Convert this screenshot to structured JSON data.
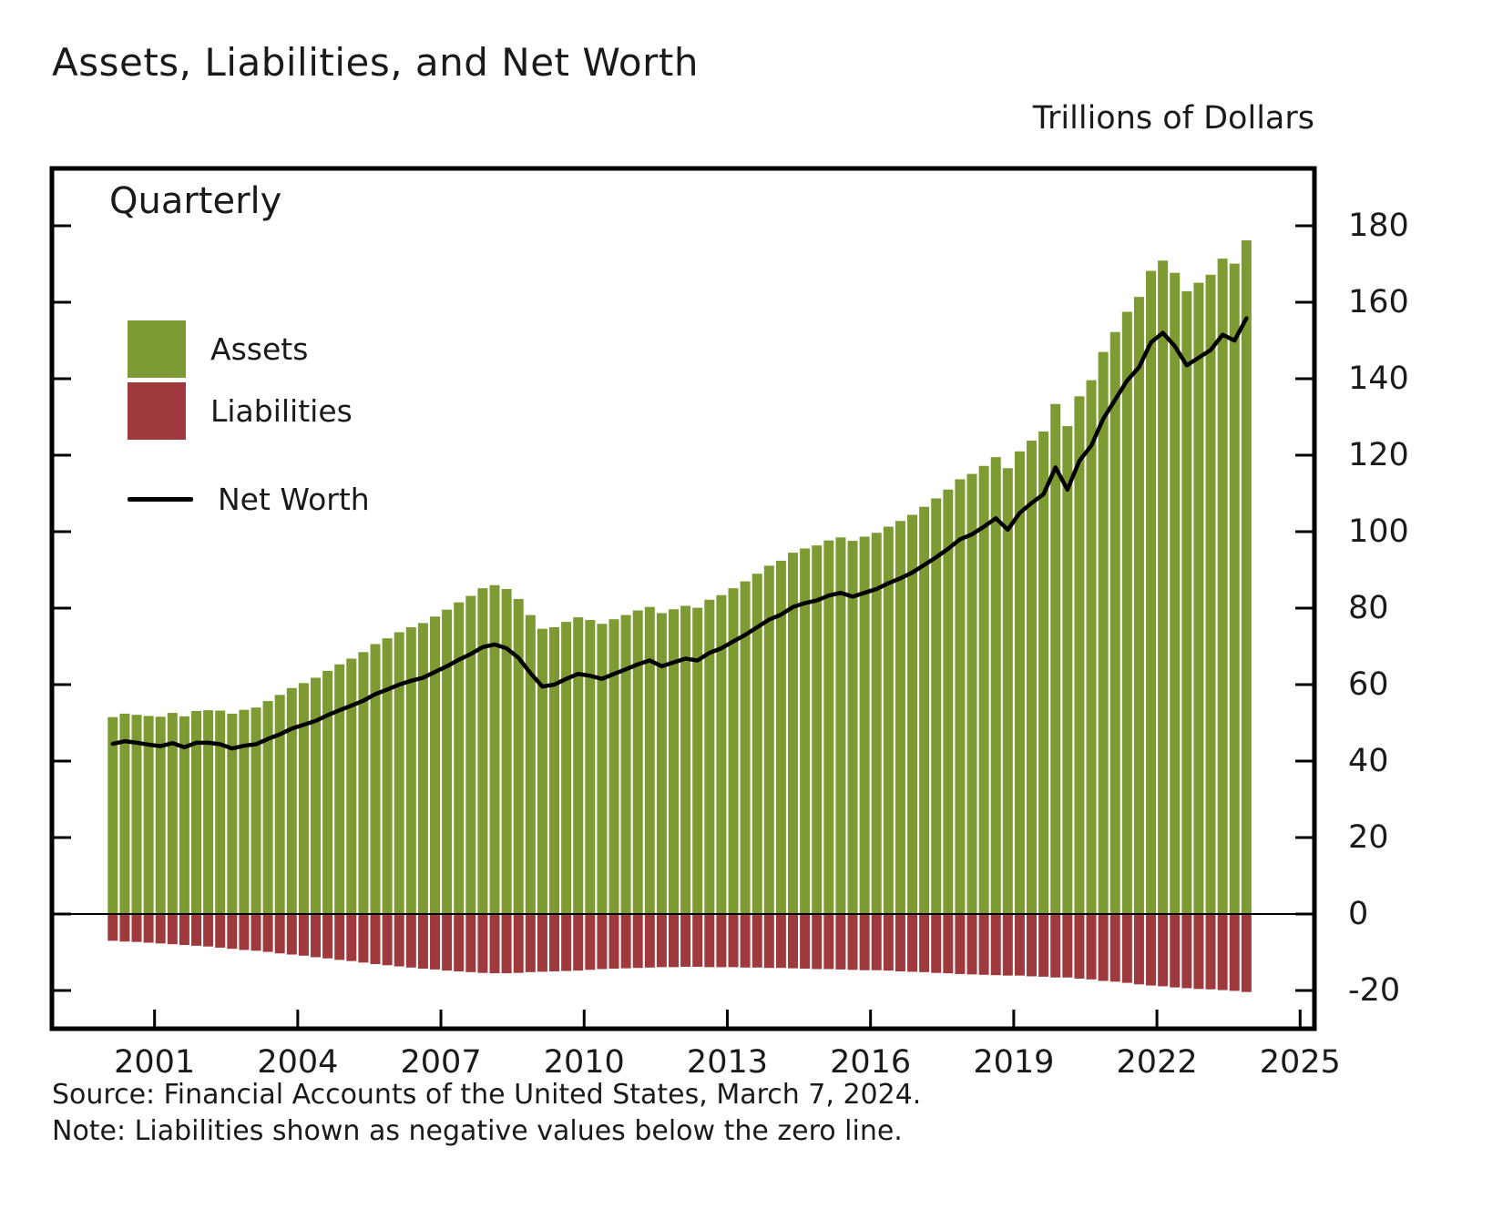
{
  "header": {
    "title": "Assets, Liabilities, and Net Worth",
    "units_label": "Trillions of Dollars"
  },
  "plot": {
    "frequency_label": "Quarterly"
  },
  "legend": {
    "assets": "Assets",
    "liabilities": "Liabilities",
    "net_worth": "Net Worth"
  },
  "footer": {
    "source": "Source: Financial Accounts of the United States, March 7, 2024.",
    "note": "Note: Liabilities shown as negative values below the zero line."
  },
  "colors": {
    "assets": "#7d9b32",
    "liabilities": "#9e3a3d",
    "net_worth": "#000000",
    "frame": "#000000",
    "text": "#1a1a1a"
  },
  "chart_data": {
    "type": "bar",
    "subtype": "quarterly bars with line overlay",
    "title": "Assets, Liabilities, and Net Worth",
    "ylabel": "Trillions of Dollars",
    "xlabel": "",
    "frequency": "quarterly",
    "start_year": 2000,
    "grid": false,
    "legend_position": "upper-left-inside",
    "x_ticks": [
      2001,
      2004,
      2007,
      2010,
      2013,
      2016,
      2019,
      2022,
      2025
    ],
    "y_ticks": [
      180,
      160,
      140,
      120,
      100,
      80,
      60,
      40,
      20,
      0,
      -20
    ],
    "ylim": [
      -30,
      195
    ],
    "xlim": [
      1998.85,
      2025.3
    ],
    "series": [
      {
        "name": "Assets",
        "type": "bar",
        "color": "#7d9b32",
        "values": [
          51.5,
          52.4,
          52.1,
          51.8,
          51.6,
          52.6,
          51.7,
          53.1,
          53.3,
          53.2,
          52.4,
          53.4,
          54.0,
          55.7,
          57.3,
          59.1,
          60.4,
          61.8,
          63.6,
          65.3,
          66.8,
          68.5,
          70.6,
          72.1,
          73.7,
          75.0,
          76.1,
          77.8,
          79.6,
          81.5,
          83.2,
          85.2,
          86.0,
          85.0,
          82.4,
          78.2,
          74.6,
          75.0,
          76.4,
          77.6,
          76.9,
          75.9,
          77.1,
          78.2,
          79.4,
          80.3,
          78.7,
          79.7,
          80.6,
          80.1,
          82.2,
          83.4,
          85.2,
          87.0,
          89.0,
          91.1,
          92.4,
          94.5,
          95.6,
          96.4,
          97.7,
          98.5,
          97.6,
          98.7,
          99.7,
          101.3,
          102.8,
          104.4,
          106.5,
          108.7,
          111.0,
          113.7,
          115.1,
          117.2,
          119.5,
          116.6,
          121.0,
          123.8,
          126.2,
          133.4,
          127.6,
          135.4,
          139.6,
          147.0,
          152.2,
          157.5,
          161.4,
          168.2,
          170.9,
          167.7,
          162.9,
          165.1,
          167.2,
          171.4,
          170.1,
          176.2
        ]
      },
      {
        "name": "Liabilities",
        "type": "bar",
        "color": "#9e3a3d",
        "values": [
          -7.0,
          -7.2,
          -7.3,
          -7.5,
          -7.7,
          -7.9,
          -8.1,
          -8.3,
          -8.5,
          -8.8,
          -9.1,
          -9.4,
          -9.6,
          -9.9,
          -10.3,
          -10.6,
          -10.9,
          -11.3,
          -11.6,
          -12.0,
          -12.3,
          -12.7,
          -13.1,
          -13.4,
          -13.7,
          -14.0,
          -14.3,
          -14.5,
          -14.8,
          -15.0,
          -15.2,
          -15.4,
          -15.5,
          -15.5,
          -15.4,
          -15.2,
          -15.1,
          -15.0,
          -14.9,
          -14.8,
          -14.6,
          -14.4,
          -14.3,
          -14.2,
          -14.1,
          -14.0,
          -13.9,
          -13.9,
          -13.8,
          -13.8,
          -13.9,
          -13.9,
          -13.9,
          -14.0,
          -14.0,
          -14.1,
          -14.1,
          -14.2,
          -14.3,
          -14.4,
          -14.4,
          -14.5,
          -14.6,
          -14.7,
          -14.7,
          -14.8,
          -15.0,
          -15.1,
          -15.2,
          -15.4,
          -15.5,
          -15.7,
          -15.8,
          -15.9,
          -16.0,
          -16.1,
          -16.1,
          -16.3,
          -16.4,
          -16.6,
          -16.6,
          -16.9,
          -17.1,
          -17.5,
          -17.7,
          -18.0,
          -18.4,
          -18.7,
          -18.9,
          -19.2,
          -19.4,
          -19.6,
          -19.7,
          -19.9,
          -20.1,
          -20.4
        ]
      },
      {
        "name": "Net Worth",
        "type": "line",
        "color": "#000000",
        "values": [
          44.5,
          45.2,
          44.8,
          44.3,
          43.9,
          44.7,
          43.6,
          44.8,
          44.8,
          44.4,
          43.3,
          44.0,
          44.4,
          45.8,
          47.0,
          48.5,
          49.5,
          50.5,
          52.0,
          53.3,
          54.5,
          55.8,
          57.5,
          58.7,
          60.0,
          61.0,
          61.8,
          63.3,
          64.8,
          66.5,
          68.0,
          69.8,
          70.5,
          69.5,
          67.0,
          63.0,
          59.5,
          60.0,
          61.5,
          62.8,
          62.3,
          61.5,
          62.8,
          64.0,
          65.3,
          66.3,
          64.8,
          65.8,
          66.8,
          66.3,
          68.3,
          69.5,
          71.3,
          73.0,
          75.0,
          77.0,
          78.3,
          80.3,
          81.3,
          82.0,
          83.3,
          84.0,
          83.0,
          84.0,
          85.0,
          86.5,
          87.8,
          89.3,
          91.3,
          93.3,
          95.5,
          98.0,
          99.3,
          101.3,
          103.5,
          100.5,
          104.9,
          107.5,
          109.8,
          116.8,
          111.0,
          118.5,
          122.5,
          129.5,
          134.5,
          139.5,
          143.0,
          149.5,
          152.0,
          148.5,
          143.5,
          145.5,
          147.5,
          151.5,
          150.0,
          155.8
        ]
      }
    ]
  }
}
